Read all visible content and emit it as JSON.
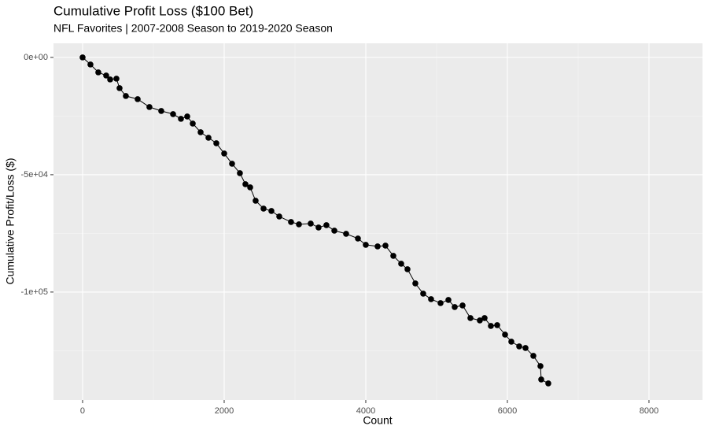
{
  "chart_data": {
    "type": "line",
    "title": "Cumulative Profit Loss ($100 Bet)",
    "subtitle": "NFL Favorites | 2007-2008 Season to 2019-2020 Season",
    "x_label": "Count",
    "y_label": "Cumulative Profit/Loss ($)",
    "x": [
      0,
      111,
      222,
      333,
      389,
      478,
      522,
      611,
      778,
      944,
      1111,
      1278,
      1389,
      1478,
      1556,
      1667,
      1778,
      1889,
      2000,
      2111,
      2222,
      2300,
      2367,
      2444,
      2556,
      2667,
      2778,
      2944,
      3056,
      3222,
      3333,
      3444,
      3556,
      3722,
      3889,
      4000,
      4167,
      4278,
      4389,
      4500,
      4589,
      4700,
      4811,
      4922,
      5056,
      5167,
      5256,
      5367,
      5478,
      5611,
      5678,
      5767,
      5856,
      5967,
      6056,
      6167,
      6256,
      6367,
      6467,
      6478,
      6578
    ],
    "values": [
      0,
      -3020,
      -6376,
      -7718,
      -9396,
      -9060,
      -13087,
      -16443,
      -17785,
      -21141,
      -22819,
      -24161,
      -26174,
      -25168,
      -28188,
      -31879,
      -34228,
      -36577,
      -40940,
      -45302,
      -49329,
      -54027,
      -55369,
      -61074,
      -64430,
      -65436,
      -67785,
      -70134,
      -71141,
      -70805,
      -72483,
      -71477,
      -73826,
      -75168,
      -77181,
      -79866,
      -80537,
      -80201,
      -84564,
      -87919,
      -90268,
      -96309,
      -100671,
      -103020,
      -104698,
      -103356,
      -106376,
      -105705,
      -111074,
      -112081,
      -111074,
      -114430,
      -114094,
      -118121,
      -121141,
      -123154,
      -123826,
      -127181,
      -131544,
      -137248,
      -138926
    ],
    "color": "#000000",
    "xlim": [
      -411,
      8756
    ],
    "xticks": [
      0,
      2000,
      4000,
      6000,
      8000
    ],
    "minor_xticks": [
      1000,
      3000,
      5000,
      7000
    ],
    "ylim": [
      -146000,
      6000
    ],
    "yticks": [
      {
        "value": 0,
        "label": "0e+00"
      },
      {
        "value": -50000,
        "label": "-5e+04"
      },
      {
        "value": -100000,
        "label": "-1e+05"
      }
    ],
    "minor_yticks": [
      -25000,
      -75000,
      -125000
    ],
    "grid": true,
    "markers": true
  }
}
